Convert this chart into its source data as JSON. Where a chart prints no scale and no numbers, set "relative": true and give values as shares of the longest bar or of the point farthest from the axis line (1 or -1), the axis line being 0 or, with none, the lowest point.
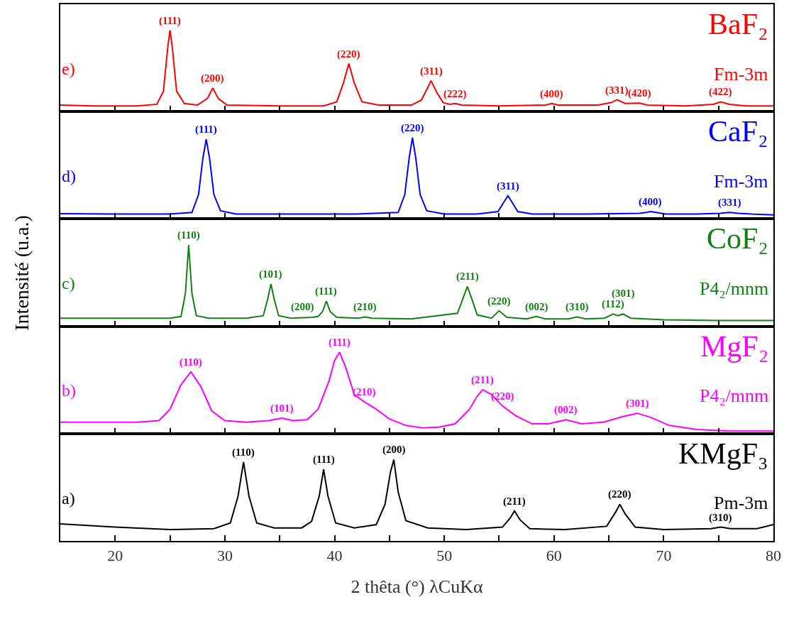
{
  "chart_data": [
    {
      "type": "line",
      "relative": true,
      "xlim": [
        15,
        80
      ],
      "xticks": [
        20,
        {
          "value": 25,
          "label": null
        },
        30,
        {
          "value": 35,
          "label": null
        },
        40,
        {
          "value": 45,
          "label": null
        },
        50,
        {
          "value": 55,
          "label": null
        },
        60,
        {
          "value": 65,
          "label": null
        },
        70,
        {
          "value": 75,
          "label": null
        },
        80
      ],
      "tick_labels": false,
      "x": [
        15,
        18,
        22,
        23.8,
        24.4,
        24.8,
        25.0,
        25.2,
        25.6,
        26.3,
        27.5,
        28.4,
        28.9,
        29.4,
        30.2,
        35,
        39,
        40.2,
        40.8,
        41.3,
        41.8,
        42.5,
        44,
        47,
        47.9,
        48.4,
        48.8,
        49.3,
        49.9,
        50.5,
        51.0,
        51.6,
        55,
        59.2,
        59.8,
        60.4,
        64,
        65.2,
        65.75,
        66.5,
        67.8,
        68.5,
        72,
        74.5,
        75.2,
        76,
        77.5,
        80
      ],
      "series": [
        {
          "color": "#ff0000",
          "values": [
            0.08,
            0.07,
            0.07,
            0.09,
            0.25,
            0.8,
            1.0,
            0.8,
            0.25,
            0.1,
            0.08,
            0.16,
            0.29,
            0.16,
            0.08,
            0.07,
            0.07,
            0.12,
            0.35,
            0.59,
            0.35,
            0.12,
            0.08,
            0.08,
            0.14,
            0.27,
            0.38,
            0.24,
            0.11,
            0.09,
            0.1,
            0.08,
            0.07,
            0.08,
            0.1,
            0.08,
            0.08,
            0.11,
            0.145,
            0.1,
            0.105,
            0.08,
            0.07,
            0.09,
            0.12,
            0.09,
            0.07,
            0.07
          ]
        }
      ],
      "annotations": [
        "e)",
        "BaF₂",
        "Fm-3m",
        {
          "text": "(111)",
          "x": 25.0,
          "y": 1.0
        },
        {
          "text": "(200)",
          "x": 28.9,
          "y": 0.29
        },
        {
          "text": "(220)",
          "x": 41.3,
          "y": 0.59
        },
        {
          "text": "(311)",
          "x": 48.8,
          "y": 0.38
        },
        {
          "text": "(222)",
          "x": 51.0,
          "y": 0.1
        },
        {
          "text": "(400)",
          "x": 59.8,
          "y": 0.1
        },
        {
          "text": "(331)",
          "x": 65.75,
          "y": 0.145
        },
        {
          "text": "(420)",
          "x": 67.8,
          "y": 0.105
        },
        {
          "text": "(422)",
          "x": 75.2,
          "y": 0.12
        }
      ]
    },
    {
      "type": "line",
      "relative": true,
      "xlim": [
        15,
        80
      ],
      "xticks": [
        20,
        {
          "value": 25,
          "label": null
        },
        30,
        {
          "value": 35,
          "label": null
        },
        40,
        {
          "value": 45,
          "label": null
        },
        50,
        {
          "value": 55,
          "label": null
        },
        60,
        {
          "value": 65,
          "label": null
        },
        70,
        {
          "value": 75,
          "label": null
        },
        80
      ],
      "tick_labels": false,
      "x": [
        15,
        20,
        25,
        27.0,
        27.6,
        28.0,
        28.3,
        28.6,
        29.0,
        29.6,
        31,
        36,
        42,
        45.8,
        46.4,
        46.8,
        47.1,
        47.4,
        47.8,
        48.4,
        50,
        53,
        54.9,
        55.4,
        55.8,
        56.2,
        56.7,
        58,
        63,
        67.8,
        68.4,
        68.8,
        69.3,
        70.2,
        73,
        75.2,
        76.0,
        76.8,
        78,
        80
      ],
      "series": [
        {
          "color": "#0000ff",
          "values": [
            0.065,
            0.06,
            0.06,
            0.08,
            0.3,
            0.75,
            0.98,
            0.75,
            0.3,
            0.1,
            0.06,
            0.06,
            0.06,
            0.08,
            0.3,
            0.75,
            1.0,
            0.75,
            0.3,
            0.1,
            0.06,
            0.06,
            0.09,
            0.2,
            0.285,
            0.2,
            0.09,
            0.06,
            0.06,
            0.07,
            0.08,
            0.09,
            0.08,
            0.06,
            0.06,
            0.07,
            0.08,
            0.07,
            0.06,
            0.05
          ]
        }
      ],
      "annotations": [
        "d)",
        "CaF₂",
        "Fm-3m",
        {
          "text": "(111)",
          "x": 28.3,
          "y": 0.98
        },
        {
          "text": "(220)",
          "x": 47.1,
          "y": 1.0
        },
        {
          "text": "(311)",
          "x": 55.8,
          "y": 0.285
        },
        {
          "text": "(400)",
          "x": 68.8,
          "y": 0.09
        },
        {
          "text": "(331)",
          "x": 76.0,
          "y": 0.08
        }
      ]
    },
    {
      "type": "line",
      "relative": true,
      "xlim": [
        15,
        80
      ],
      "xticks": [
        20,
        {
          "value": 25,
          "label": null
        },
        30,
        {
          "value": 35,
          "label": null
        },
        40,
        {
          "value": 45,
          "label": null
        },
        50,
        {
          "value": 55,
          "label": null
        },
        60,
        {
          "value": 65,
          "label": null
        },
        70,
        {
          "value": 75,
          "label": null
        },
        80
      ],
      "tick_labels": false,
      "ylabel": "Intensité (u.a.)",
      "x": [
        15,
        20,
        25,
        26.0,
        26.4,
        26.7,
        27.0,
        27.4,
        28.5,
        32,
        33.5,
        33.9,
        34.2,
        34.5,
        34.9,
        36,
        38.0,
        38.5,
        38.9,
        39.25,
        39.6,
        40.2,
        42.2,
        42.8,
        43.4,
        47,
        51.2,
        51.7,
        52.1,
        52.5,
        53.0,
        54.3,
        55.0,
        55.7,
        57.5,
        58.4,
        59.2,
        61.3,
        62.1,
        62.9,
        64.6,
        65.4,
        65.8,
        66.3,
        67.0,
        70,
        75,
        80
      ],
      "series": [
        {
          "color": "#138013",
          "values": [
            0.1,
            0.1,
            0.1,
            0.12,
            0.4,
            1.0,
            0.4,
            0.13,
            0.1,
            0.1,
            0.13,
            0.33,
            0.52,
            0.33,
            0.13,
            0.1,
            0.11,
            0.12,
            0.18,
            0.31,
            0.18,
            0.11,
            0.1,
            0.115,
            0.1,
            0.09,
            0.16,
            0.34,
            0.49,
            0.34,
            0.14,
            0.1,
            0.19,
            0.11,
            0.09,
            0.12,
            0.09,
            0.09,
            0.115,
            0.09,
            0.1,
            0.15,
            0.13,
            0.15,
            0.1,
            0.08,
            0.07,
            0.07
          ]
        }
      ],
      "annotations": [
        "c)",
        "CoF₂",
        "P4₂/mnm",
        {
          "text": "(110)",
          "x": 26.7,
          "y": 1.0
        },
        {
          "text": "(101)",
          "x": 34.2,
          "y": 0.52
        },
        {
          "text": "(200)",
          "x": 38.5,
          "y": 0.12
        },
        {
          "text": "(111)",
          "x": 39.25,
          "y": 0.31
        },
        {
          "text": "(210)",
          "x": 42.8,
          "y": 0.115
        },
        {
          "text": "(211)",
          "x": 52.1,
          "y": 0.49
        },
        {
          "text": "(220)",
          "x": 55.0,
          "y": 0.19
        },
        {
          "text": "(002)",
          "x": 58.4,
          "y": 0.12
        },
        {
          "text": "(310)",
          "x": 62.1,
          "y": 0.115
        },
        {
          "text": "(112)",
          "x": 65.4,
          "y": 0.15
        },
        {
          "text": "(301)",
          "x": 66.3,
          "y": 0.15
        }
      ]
    },
    {
      "type": "line",
      "relative": true,
      "xlim": [
        15,
        80
      ],
      "xticks": [
        20,
        {
          "value": 25,
          "label": null
        },
        30,
        {
          "value": 35,
          "label": null
        },
        40,
        {
          "value": 45,
          "label": null
        },
        50,
        {
          "value": 55,
          "label": null
        },
        60,
        {
          "value": 65,
          "label": null
        },
        70,
        {
          "value": 75,
          "label": null
        },
        80
      ],
      "tick_labels": false,
      "x": [
        15,
        18,
        22,
        24.0,
        25.0,
        26.0,
        26.9,
        27.8,
        28.8,
        30,
        32,
        34,
        35.2,
        36.2,
        37.5,
        38.5,
        39.5,
        40.0,
        40.45,
        41.0,
        41.8,
        42.7,
        43.8,
        45,
        46.5,
        48,
        49.5,
        51,
        52.3,
        53.0,
        53.5,
        54.3,
        55.3,
        56.5,
        58,
        59.5,
        61.1,
        62.5,
        64.5,
        66.3,
        67.6,
        68.8,
        70.5,
        73,
        76,
        78,
        80
      ],
      "series": [
        {
          "color": "#ff00ff",
          "values": [
            0.14,
            0.14,
            0.14,
            0.16,
            0.3,
            0.6,
            0.76,
            0.58,
            0.28,
            0.16,
            0.14,
            0.16,
            0.19,
            0.16,
            0.17,
            0.3,
            0.65,
            0.9,
            1.0,
            0.82,
            0.48,
            0.39,
            0.3,
            0.18,
            0.1,
            0.07,
            0.08,
            0.12,
            0.3,
            0.46,
            0.54,
            0.48,
            0.34,
            0.22,
            0.12,
            0.12,
            0.17,
            0.12,
            0.14,
            0.21,
            0.25,
            0.2,
            0.1,
            0.05,
            0.03,
            0.03,
            0.03
          ]
        }
      ],
      "annotations": [
        "b)",
        "MgF₂",
        "P4₂/mnm",
        {
          "text": "(110)",
          "x": 26.9,
          "y": 0.76
        },
        {
          "text": "(101)",
          "x": 35.2,
          "y": 0.19
        },
        {
          "text": "(111)",
          "x": 40.45,
          "y": 1.0
        },
        {
          "text": "(210)",
          "x": 42.7,
          "y": 0.39
        },
        {
          "text": "(211)",
          "x": 53.5,
          "y": 0.54
        },
        {
          "text": "(220)",
          "x": 55.3,
          "y": 0.34
        },
        {
          "text": "(002)",
          "x": 61.1,
          "y": 0.17
        },
        {
          "text": "(301)",
          "x": 67.6,
          "y": 0.25
        }
      ]
    },
    {
      "type": "line",
      "relative": true,
      "xlim": [
        15,
        80
      ],
      "xticks": [
        20,
        {
          "value": 25,
          "label": null
        },
        30,
        {
          "value": 35,
          "label": null
        },
        40,
        {
          "value": 45,
          "label": null
        },
        50,
        {
          "value": 55,
          "label": null
        },
        60,
        {
          "value": 65,
          "label": null
        },
        70,
        {
          "value": 75,
          "label": null
        },
        80
      ],
      "tick_labels": "x",
      "xlabel": "2 thêta (°) λCuKα",
      "x": [
        15,
        20,
        25,
        29,
        30.5,
        31.2,
        31.7,
        32.2,
        32.9,
        34.5,
        37,
        37.9,
        38.6,
        39.0,
        39.4,
        40.1,
        41.8,
        43.8,
        44.6,
        45.1,
        45.4,
        45.8,
        46.5,
        48.5,
        52,
        55.3,
        56.0,
        56.4,
        56.9,
        57.8,
        61,
        64.8,
        65.6,
        66.0,
        66.5,
        67.4,
        70,
        74.3,
        75.2,
        76.1,
        78.5,
        80
      ],
      "series": [
        {
          "color": "#000000",
          "values": [
            0.21,
            0.17,
            0.14,
            0.15,
            0.22,
            0.55,
            0.97,
            0.55,
            0.22,
            0.16,
            0.16,
            0.24,
            0.55,
            0.88,
            0.55,
            0.22,
            0.16,
            0.2,
            0.45,
            0.85,
            1.0,
            0.6,
            0.25,
            0.16,
            0.14,
            0.17,
            0.28,
            0.37,
            0.26,
            0.15,
            0.14,
            0.18,
            0.35,
            0.45,
            0.33,
            0.17,
            0.14,
            0.15,
            0.17,
            0.15,
            0.15,
            0.2
          ]
        }
      ],
      "annotations": [
        "a)",
        "KMgF₃",
        "Pm-3m",
        {
          "text": "(110)",
          "x": 31.7,
          "y": 0.97
        },
        {
          "text": "(111)",
          "x": 39.0,
          "y": 0.88
        },
        {
          "text": "(200)",
          "x": 45.4,
          "y": 1.0
        },
        {
          "text": "(211)",
          "x": 56.4,
          "y": 0.37
        },
        {
          "text": "(220)",
          "x": 66.0,
          "y": 0.45
        },
        {
          "text": "(310)",
          "x": 75.2,
          "y": 0.17
        }
      ]
    }
  ]
}
